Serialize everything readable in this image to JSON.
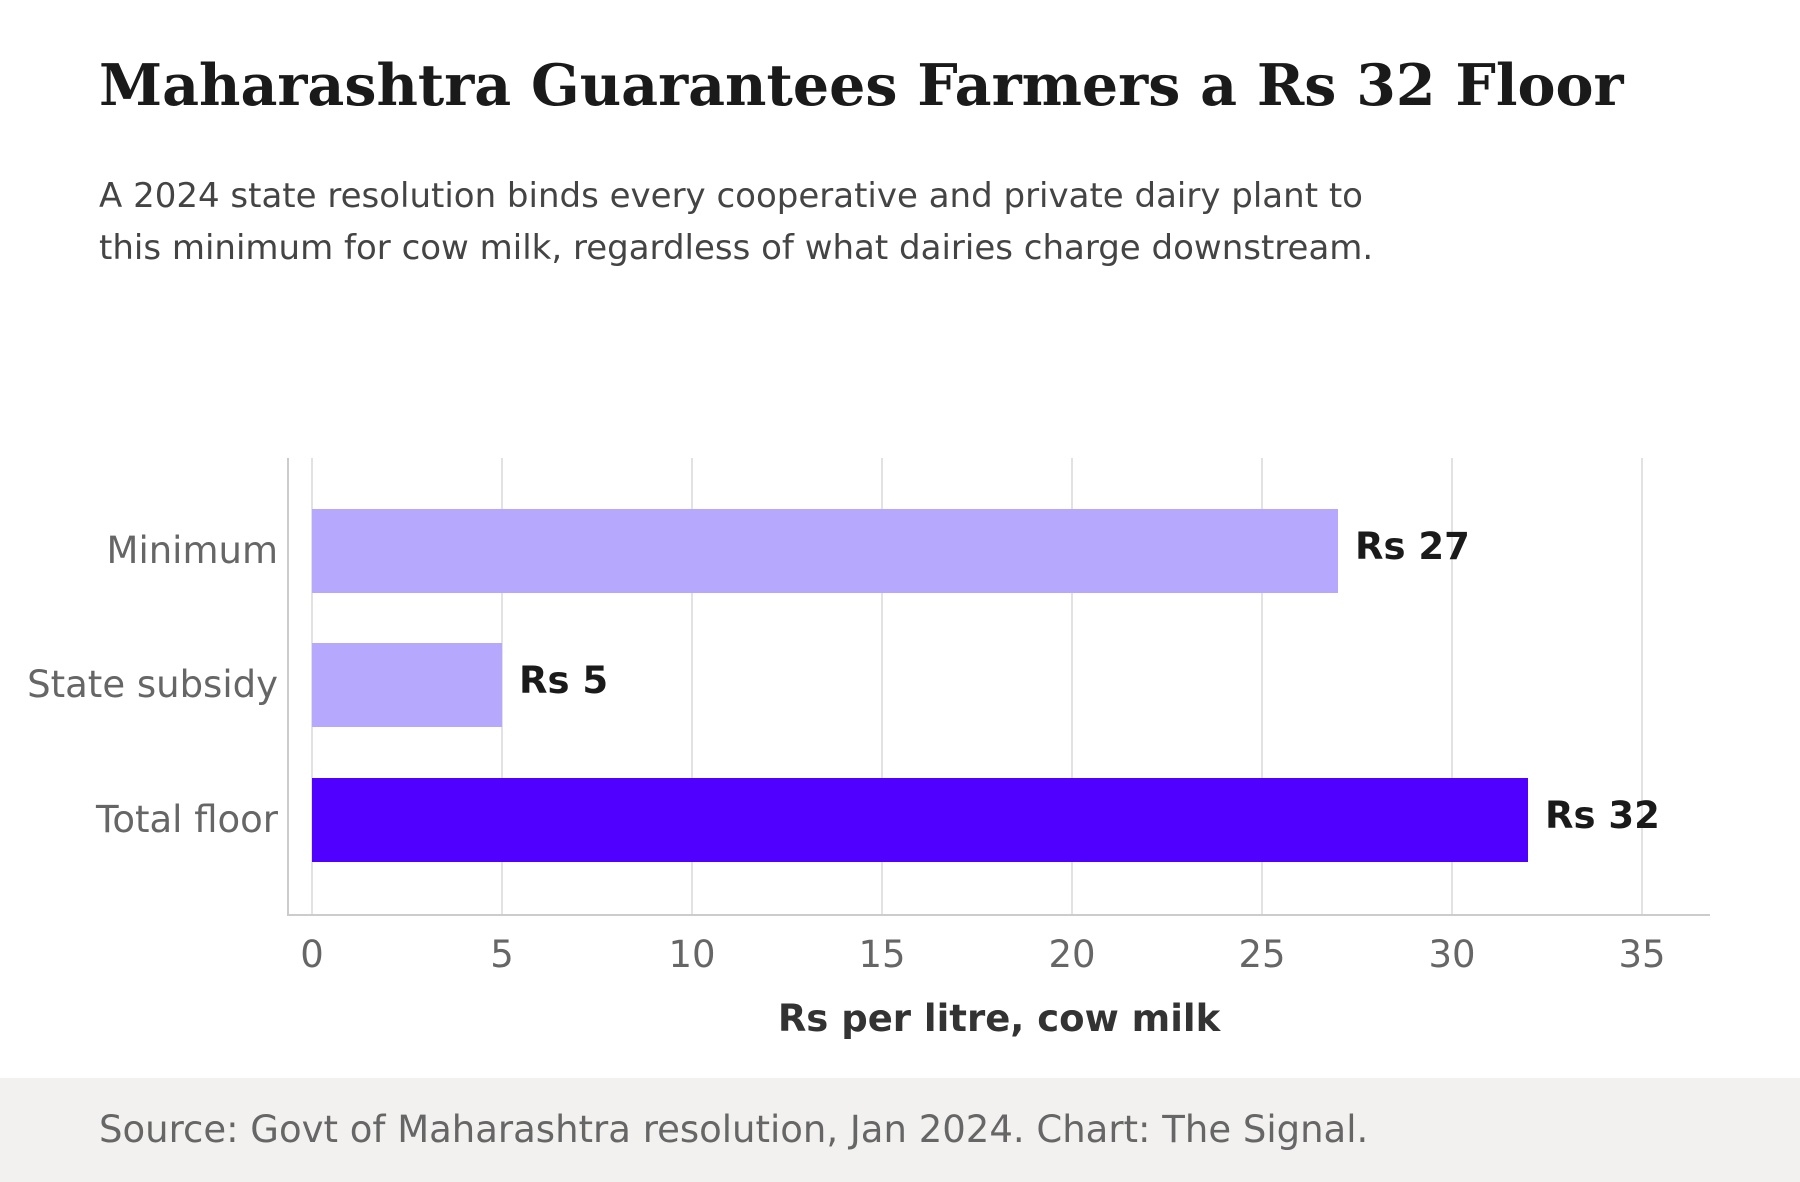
{
  "header": {
    "title": "Maharashtra Guarantees Farmers a Rs 32 Floor",
    "subtitle": "A 2024 state resolution binds every cooperative and private dairy plant to this minimum for cow milk, regardless of what dairies charge downstream."
  },
  "footer": {
    "source": "Source: Govt of Maharashtra resolution, Jan 2024. Chart: The Signal."
  },
  "colors": {
    "light_bar": "#b6a8fd",
    "highlight_bar": "#4f00ff",
    "gridline": "#e2e2e2",
    "axis": "#cccccc"
  },
  "chart_data": {
    "type": "bar",
    "orientation": "horizontal",
    "categories": [
      "Minimum",
      "State subsidy",
      "Total floor"
    ],
    "values": [
      27,
      5,
      32
    ],
    "data_labels": [
      "Rs 27",
      "Rs 5",
      "Rs 32"
    ],
    "highlight": "Total floor",
    "xlabel": "Rs per litre, cow milk",
    "ylabel": "",
    "xlim": [
      0,
      35
    ],
    "xticks": [
      0,
      5,
      10,
      15,
      20,
      25,
      30,
      35
    ],
    "grid": "vertical"
  }
}
